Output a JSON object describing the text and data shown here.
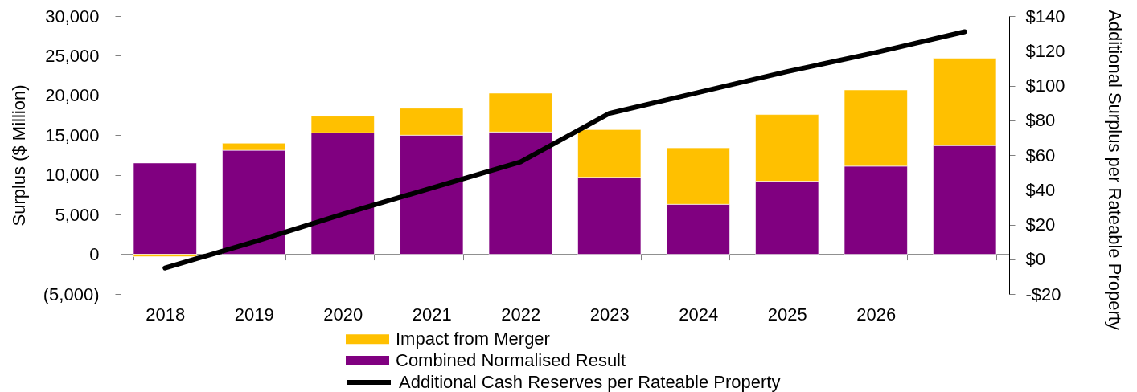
{
  "chart_data": {
    "type": "bar",
    "stacked": true,
    "categories": [
      "2018",
      "2019",
      "2020",
      "2021",
      "2022",
      "2023",
      "2024",
      "2025",
      "2026",
      null
    ],
    "series": [
      {
        "name": "Combined Normalised Result",
        "color": "#800080",
        "values": [
          11500,
          13100,
          15300,
          15000,
          15400,
          9700,
          6300,
          9200,
          11100,
          13700
        ]
      },
      {
        "name": "Impact from Merger",
        "color": "#ffc000",
        "values": [
          -300,
          900,
          2100,
          3400,
          4900,
          6000,
          7100,
          8400,
          9600,
          11000
        ]
      },
      {
        "name": "Additional Cash Reserves per Rateable Property",
        "type": "line",
        "axis": "y2",
        "color": "#000000",
        "line_style": "solid",
        "values": [
          -5,
          10,
          26,
          41,
          56,
          84,
          96,
          108,
          119,
          131
        ]
      }
    ],
    "ylabel": "Surplus ($ Million)",
    "y2label": "Additional Surplus per Rateable Property",
    "ylim": [
      -5000,
      30000
    ],
    "yticks": [
      {
        "value": -5000,
        "label": "(5,000)"
      },
      {
        "value": 0,
        "label": "0"
      },
      {
        "value": 5000,
        "label": "5,000"
      },
      {
        "value": 10000,
        "label": "10,000"
      },
      {
        "value": 15000,
        "label": "15,000"
      },
      {
        "value": 20000,
        "label": "20,000"
      },
      {
        "value": 25000,
        "label": "25,000"
      },
      {
        "value": 30000,
        "label": "30,000"
      }
    ],
    "y2lim": [
      -20,
      140
    ],
    "y2ticks": [
      {
        "value": -20,
        "label": "-$20"
      },
      {
        "value": 0,
        "label": "$0"
      },
      {
        "value": 20,
        "label": "$20"
      },
      {
        "value": 40,
        "label": "$40"
      },
      {
        "value": 60,
        "label": "$60"
      },
      {
        "value": 80,
        "label": "$80"
      },
      {
        "value": 100,
        "label": "$100"
      },
      {
        "value": 120,
        "label": "$120"
      },
      {
        "value": 140,
        "label": "$140"
      }
    ],
    "legend": "bottom"
  }
}
